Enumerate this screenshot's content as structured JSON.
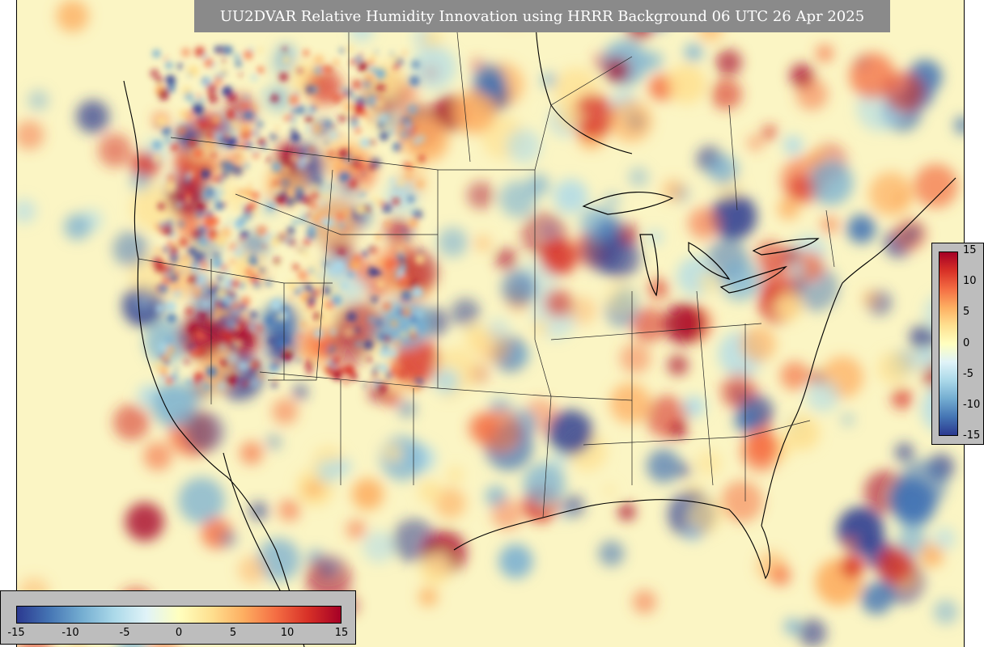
{
  "title": "UU2DVAR Relative Humidity Innovation using HRRR Background 06 UTC 26 Apr 2025",
  "colorbar": {
    "vertical_ticks": [
      "15",
      "10",
      "5",
      "0",
      "-5",
      "-10",
      "-15"
    ],
    "horizontal_ticks": [
      "-15",
      "-10",
      "-5",
      "0",
      "5",
      "10",
      "15"
    ],
    "colors": {
      "min": "#2b3990",
      "mid": "#ffffbf",
      "max": "#a50026"
    }
  }
}
